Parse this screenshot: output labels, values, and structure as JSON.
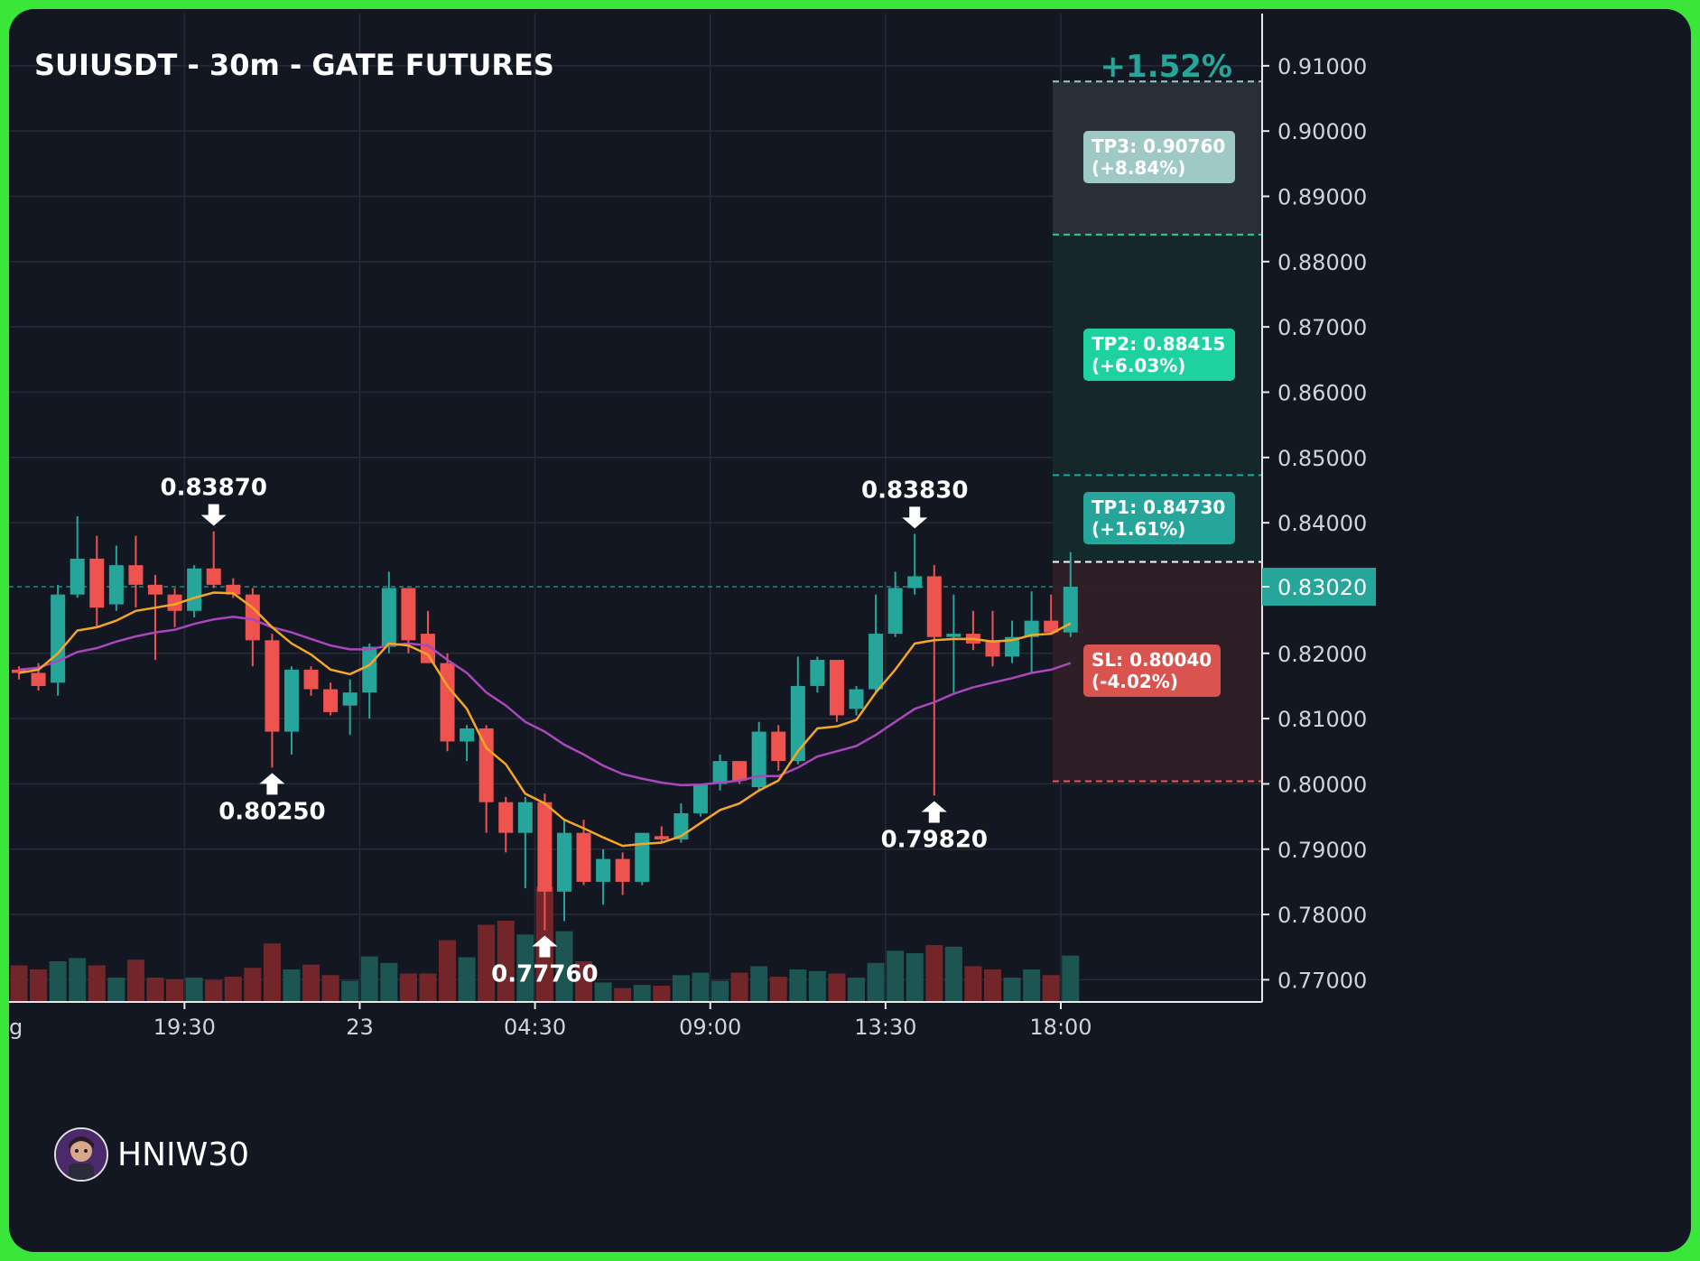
{
  "title": "SUIUSDT - 30m - GATE FUTURES",
  "change_label": "+1.52%",
  "current_price_label": "0.83020",
  "brand": {
    "name": "HNIW30"
  },
  "colors": {
    "background": "#131722",
    "up": "#26a69a",
    "down": "#ef5350",
    "ema_fast": "#f5a623",
    "ema_slow": "#ab47bc",
    "tp1": "#26a69a",
    "tp2": "#1dd1a1",
    "tp3": "#9fc9c5",
    "sl": "#d9534f"
  },
  "chart_data": {
    "type": "candlestick",
    "title": "SUIUSDT - 30m - GATE FUTURES",
    "y_range": [
      0.7666,
      0.918
    ],
    "y_ticks": [
      "0.91000",
      "0.90000",
      "0.89000",
      "0.88000",
      "0.87000",
      "0.86000",
      "0.85000",
      "0.84000",
      "0.83020",
      "0.82000",
      "0.81000",
      "0.80000",
      "0.79000",
      "0.78000",
      "0.77000"
    ],
    "x_ticks": [
      {
        "label": "19:30",
        "index": 8.5
      },
      {
        "label": "23",
        "index": 17.5
      },
      {
        "label": "04:30",
        "index": 26.5
      },
      {
        "label": "09:00",
        "index": 35.5
      },
      {
        "label": "13:30",
        "index": 44.5
      },
      {
        "label": "18:00",
        "index": 53.5
      }
    ],
    "first_x_label_partial": "g",
    "candles": [
      {
        "o": 0.8175,
        "h": 0.818,
        "l": 0.816,
        "c": 0.817
      },
      {
        "o": 0.817,
        "h": 0.8185,
        "l": 0.8143,
        "c": 0.815
      },
      {
        "o": 0.8155,
        "h": 0.8305,
        "l": 0.8135,
        "c": 0.829
      },
      {
        "o": 0.829,
        "h": 0.841,
        "l": 0.8285,
        "c": 0.8345
      },
      {
        "o": 0.8345,
        "h": 0.838,
        "l": 0.824,
        "c": 0.827
      },
      {
        "o": 0.8275,
        "h": 0.8365,
        "l": 0.8265,
        "c": 0.8335
      },
      {
        "o": 0.8335,
        "h": 0.838,
        "l": 0.827,
        "c": 0.8305
      },
      {
        "o": 0.8305,
        "h": 0.832,
        "l": 0.819,
        "c": 0.829
      },
      {
        "o": 0.829,
        "h": 0.83,
        "l": 0.824,
        "c": 0.8265
      },
      {
        "o": 0.8265,
        "h": 0.8335,
        "l": 0.8255,
        "c": 0.833
      },
      {
        "o": 0.833,
        "h": 0.8387,
        "l": 0.83,
        "c": 0.8305
      },
      {
        "o": 0.8305,
        "h": 0.8315,
        "l": 0.8285,
        "c": 0.829
      },
      {
        "o": 0.829,
        "h": 0.83,
        "l": 0.818,
        "c": 0.822
      },
      {
        "o": 0.822,
        "h": 0.823,
        "l": 0.8025,
        "c": 0.808
      },
      {
        "o": 0.808,
        "h": 0.818,
        "l": 0.8045,
        "c": 0.8175
      },
      {
        "o": 0.8175,
        "h": 0.818,
        "l": 0.8135,
        "c": 0.8145
      },
      {
        "o": 0.8145,
        "h": 0.8155,
        "l": 0.8105,
        "c": 0.811
      },
      {
        "o": 0.812,
        "h": 0.816,
        "l": 0.8075,
        "c": 0.814
      },
      {
        "o": 0.814,
        "h": 0.8215,
        "l": 0.81,
        "c": 0.821
      },
      {
        "o": 0.821,
        "h": 0.8325,
        "l": 0.82,
        "c": 0.83
      },
      {
        "o": 0.83,
        "h": 0.83,
        "l": 0.82,
        "c": 0.822
      },
      {
        "o": 0.823,
        "h": 0.8265,
        "l": 0.8185,
        "c": 0.8185
      },
      {
        "o": 0.8185,
        "h": 0.82,
        "l": 0.805,
        "c": 0.8065
      },
      {
        "o": 0.8065,
        "h": 0.809,
        "l": 0.8035,
        "c": 0.8085
      },
      {
        "o": 0.8085,
        "h": 0.809,
        "l": 0.7925,
        "c": 0.7972
      },
      {
        "o": 0.7972,
        "h": 0.798,
        "l": 0.7895,
        "c": 0.7925
      },
      {
        "o": 0.7925,
        "h": 0.798,
        "l": 0.784,
        "c": 0.7972
      },
      {
        "o": 0.7972,
        "h": 0.7985,
        "l": 0.7776,
        "c": 0.7835
      },
      {
        "o": 0.7835,
        "h": 0.7945,
        "l": 0.779,
        "c": 0.7925
      },
      {
        "o": 0.7925,
        "h": 0.7945,
        "l": 0.7845,
        "c": 0.785
      },
      {
        "o": 0.785,
        "h": 0.79,
        "l": 0.7815,
        "c": 0.7885
      },
      {
        "o": 0.7885,
        "h": 0.7895,
        "l": 0.783,
        "c": 0.785
      },
      {
        "o": 0.785,
        "h": 0.792,
        "l": 0.7845,
        "c": 0.7925
      },
      {
        "o": 0.792,
        "h": 0.7935,
        "l": 0.791,
        "c": 0.7915
      },
      {
        "o": 0.7915,
        "h": 0.797,
        "l": 0.791,
        "c": 0.7955
      },
      {
        "o": 0.7955,
        "h": 0.8,
        "l": 0.795,
        "c": 0.8
      },
      {
        "o": 0.8,
        "h": 0.8045,
        "l": 0.799,
        "c": 0.8035
      },
      {
        "o": 0.8035,
        "h": 0.8035,
        "l": 0.8,
        "c": 0.8005
      },
      {
        "o": 0.7995,
        "h": 0.8095,
        "l": 0.799,
        "c": 0.808
      },
      {
        "o": 0.808,
        "h": 0.809,
        "l": 0.802,
        "c": 0.8035
      },
      {
        "o": 0.8035,
        "h": 0.8195,
        "l": 0.803,
        "c": 0.815
      },
      {
        "o": 0.815,
        "h": 0.8195,
        "l": 0.814,
        "c": 0.819
      },
      {
        "o": 0.819,
        "h": 0.819,
        "l": 0.8095,
        "c": 0.8105
      },
      {
        "o": 0.8115,
        "h": 0.815,
        "l": 0.8105,
        "c": 0.8145
      },
      {
        "o": 0.8145,
        "h": 0.829,
        "l": 0.814,
        "c": 0.823
      },
      {
        "o": 0.823,
        "h": 0.8325,
        "l": 0.8225,
        "c": 0.83
      },
      {
        "o": 0.83,
        "h": 0.8383,
        "l": 0.829,
        "c": 0.8318
      },
      {
        "o": 0.8318,
        "h": 0.8335,
        "l": 0.7982,
        "c": 0.8225
      },
      {
        "o": 0.8225,
        "h": 0.829,
        "l": 0.814,
        "c": 0.823
      },
      {
        "o": 0.823,
        "h": 0.8265,
        "l": 0.8205,
        "c": 0.8215
      },
      {
        "o": 0.822,
        "h": 0.8265,
        "l": 0.818,
        "c": 0.8195
      },
      {
        "o": 0.8195,
        "h": 0.825,
        "l": 0.8185,
        "c": 0.8225
      },
      {
        "o": 0.8225,
        "h": 0.8295,
        "l": 0.817,
        "c": 0.825
      },
      {
        "o": 0.825,
        "h": 0.829,
        "l": 0.823,
        "c": 0.8232
      },
      {
        "o": 0.8232,
        "h": 0.8355,
        "l": 0.8225,
        "c": 0.8302
      }
    ],
    "volume": [
      0.45,
      0.4,
      0.5,
      0.54,
      0.45,
      0.3,
      0.52,
      0.3,
      0.28,
      0.3,
      0.27,
      0.31,
      0.42,
      0.72,
      0.4,
      0.46,
      0.33,
      0.26,
      0.56,
      0.48,
      0.35,
      0.35,
      0.76,
      0.55,
      0.95,
      1.0,
      0.83,
      1.42,
      0.87,
      0.5,
      0.24,
      0.17,
      0.21,
      0.2,
      0.33,
      0.36,
      0.26,
      0.36,
      0.44,
      0.31,
      0.4,
      0.38,
      0.35,
      0.3,
      0.48,
      0.63,
      0.6,
      0.7,
      0.68,
      0.44,
      0.4,
      0.3,
      0.4,
      0.33,
      0.57
    ],
    "ema_fast": [
      0.817,
      0.8175,
      0.82,
      0.8235,
      0.824,
      0.825,
      0.8265,
      0.827,
      0.8275,
      0.8285,
      0.8293,
      0.8292,
      0.827,
      0.824,
      0.8215,
      0.8198,
      0.8175,
      0.8168,
      0.8182,
      0.8215,
      0.8212,
      0.8198,
      0.815,
      0.8115,
      0.8055,
      0.803,
      0.7985,
      0.797,
      0.7945,
      0.7932,
      0.7918,
      0.7905,
      0.7908,
      0.791,
      0.792,
      0.794,
      0.796,
      0.797,
      0.799,
      0.8005,
      0.805,
      0.8085,
      0.8088,
      0.8098,
      0.814,
      0.8175,
      0.8215,
      0.822,
      0.8222,
      0.8222,
      0.8218,
      0.822,
      0.8228,
      0.823,
      0.8246
    ],
    "ema_slow": [
      0.8175,
      0.8178,
      0.8188,
      0.8202,
      0.8208,
      0.8218,
      0.8226,
      0.8232,
      0.8236,
      0.8245,
      0.8252,
      0.8256,
      0.8252,
      0.824,
      0.8232,
      0.8222,
      0.8212,
      0.8206,
      0.8206,
      0.8212,
      0.8215,
      0.8212,
      0.819,
      0.817,
      0.814,
      0.812,
      0.8095,
      0.808,
      0.806,
      0.8045,
      0.8028,
      0.8015,
      0.8008,
      0.8002,
      0.7998,
      0.7999,
      0.8002,
      0.8005,
      0.8012,
      0.8012,
      0.8025,
      0.8042,
      0.805,
      0.8058,
      0.8075,
      0.8095,
      0.8115,
      0.8125,
      0.8138,
      0.8148,
      0.8155,
      0.8162,
      0.817,
      0.8175,
      0.8185
    ],
    "current_price": 0.8302,
    "annotations": [
      {
        "text": "0.83870",
        "type": "high",
        "index": 10
      },
      {
        "text": "0.80250",
        "type": "low",
        "index": 13
      },
      {
        "text": "0.77760",
        "type": "low",
        "index": 27
      },
      {
        "text": "0.83830",
        "type": "high",
        "index": 46
      },
      {
        "text": "0.79820",
        "type": "low",
        "index": 47
      }
    ],
    "levels": {
      "entry": 0.834,
      "tp1": 0.8473,
      "tp2": 0.88415,
      "tp3": 0.9076,
      "sl": 0.8004
    },
    "level_labels": [
      {
        "key": "tp3",
        "line1": "TP3: 0.90760",
        "line2": "(+8.84%)"
      },
      {
        "key": "tp2",
        "line1": "TP2: 0.88415",
        "line2": "(+6.03%)"
      },
      {
        "key": "tp1",
        "line1": "TP1: 0.84730",
        "line2": "(+1.61%)"
      },
      {
        "key": "sl",
        "line1": "SL: 0.80040",
        "line2": "(-4.02%)"
      }
    ]
  }
}
